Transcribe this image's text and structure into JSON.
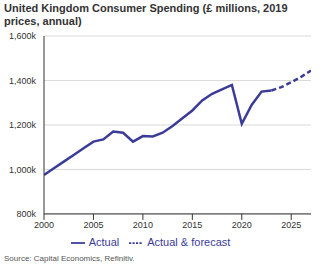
{
  "chart_data": {
    "type": "line",
    "title": "United Kingdom Consumer Spending (£ millions, 2019 prices, annual)",
    "source": "Source: Capital Economics, Refinitiv.",
    "x": [
      2000,
      2001,
      2002,
      2003,
      2004,
      2005,
      2006,
      2007,
      2008,
      2009,
      2010,
      2011,
      2012,
      2013,
      2014,
      2015,
      2016,
      2017,
      2018,
      2019,
      2020,
      2021,
      2022,
      2023,
      2024,
      2025,
      2026,
      2027
    ],
    "series": [
      {
        "name": "Actual",
        "color": "#3b3b9a",
        "line_style": "solid",
        "values": [
          975000,
          1005000,
          1035000,
          1065000,
          1095000,
          1125000,
          1135000,
          1170000,
          1165000,
          1125000,
          1150000,
          1148000,
          1165000,
          1195000,
          1230000,
          1265000,
          1310000,
          1340000,
          1360000,
          1380000,
          1205000,
          1290000,
          1350000,
          1355000,
          null,
          null,
          null,
          null
        ]
      },
      {
        "name": "Actual & forecast",
        "color": "#3b3b9a",
        "line_style": "dashed",
        "values": [
          null,
          null,
          null,
          null,
          null,
          null,
          null,
          null,
          null,
          null,
          null,
          null,
          null,
          null,
          null,
          null,
          null,
          null,
          null,
          null,
          null,
          null,
          null,
          1355000,
          1370000,
          1392000,
          1416000,
          1445000
        ]
      }
    ],
    "xlim": [
      2000,
      2027
    ],
    "xticks": [
      2000,
      2005,
      2010,
      2015,
      2020,
      2025
    ],
    "ylim": [
      800000,
      1600000
    ],
    "yticks": [
      {
        "value": 800000,
        "label": "800k"
      },
      {
        "value": 1000000,
        "label": "1,000k"
      },
      {
        "value": 1200000,
        "label": "1,200k"
      },
      {
        "value": 1400000,
        "label": "1,400k"
      },
      {
        "value": 1600000,
        "label": "1,600k"
      }
    ],
    "grid": true,
    "legend": "bottom"
  }
}
